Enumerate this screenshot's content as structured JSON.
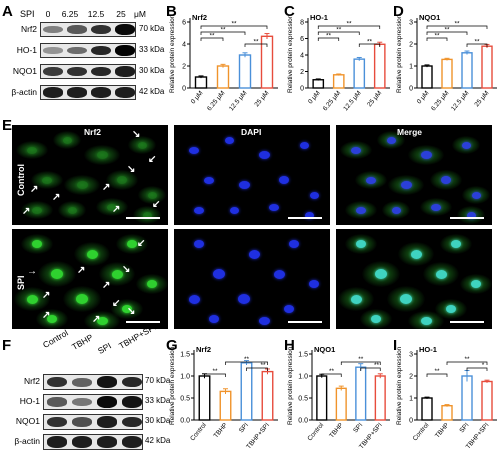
{
  "panels": {
    "A": "A",
    "B": "B",
    "C": "C",
    "D": "D",
    "E": "E",
    "F": "F",
    "G": "G",
    "H": "H",
    "I": "I"
  },
  "panel_a": {
    "spi_label": "SPI",
    "concentrations": [
      "0",
      "6.25",
      "12.5",
      "25",
      "μM"
    ],
    "rows": [
      {
        "label": "Nrf2",
        "kda": "70 kDa",
        "intensity": [
          0.35,
          0.55,
          0.75,
          0.95
        ]
      },
      {
        "label": "HO-1",
        "kda": "33 kDa",
        "intensity": [
          0.25,
          0.45,
          0.8,
          0.98
        ]
      },
      {
        "label": "NQO1",
        "kda": "30 kDa",
        "intensity": [
          0.7,
          0.75,
          0.8,
          0.85
        ]
      },
      {
        "label": "β-actin",
        "kda": "42 kDa",
        "intensity": [
          0.85,
          0.85,
          0.85,
          0.85
        ]
      }
    ]
  },
  "panel_f": {
    "conditions": [
      "Control",
      "TBHP",
      "SPI",
      "TBHP+SPI"
    ],
    "rows": [
      {
        "label": "Nrf2",
        "kda": "70 kDa",
        "intensity": [
          0.75,
          0.5,
          0.9,
          0.8
        ]
      },
      {
        "label": "HO-1",
        "kda": "33 kDa",
        "intensity": [
          0.55,
          0.4,
          0.95,
          0.9
        ]
      },
      {
        "label": "NQO1",
        "kda": "30 kDa",
        "intensity": [
          0.75,
          0.6,
          0.85,
          0.8
        ]
      },
      {
        "label": "β-actin",
        "kda": "42 kDa",
        "intensity": [
          0.85,
          0.85,
          0.85,
          0.85
        ]
      }
    ]
  },
  "panel_e": {
    "columns": [
      "Nrf2",
      "DAPI",
      "Merge"
    ],
    "rows": [
      "Control",
      "SPI"
    ]
  },
  "colors": {
    "c0": "#000000",
    "c1": "#f0932b",
    "c2": "#4a90d9",
    "c3": "#e74c3c",
    "green": "#2fd12f",
    "blue": "#1f2fe0",
    "cyan": "#3fd3c0"
  },
  "chart_data": [
    {
      "type": "bar",
      "panel": "B",
      "title": "Nrf2",
      "ylabel": "Relative protein expression",
      "categories": [
        "0 μM",
        "6.25 μM",
        "12.5 μM",
        "25 μM"
      ],
      "values": [
        1.0,
        2.0,
        3.0,
        4.7
      ],
      "errors": [
        0.1,
        0.15,
        0.2,
        0.25
      ],
      "ylim": [
        0,
        6
      ],
      "yticks": [
        0,
        2,
        4,
        6
      ],
      "significance": [
        "**",
        "**",
        "**",
        "**"
      ]
    },
    {
      "type": "bar",
      "panel": "C",
      "title": "HO-1",
      "ylabel": "Relative protein expression",
      "categories": [
        "0 μM",
        "6.25 μM",
        "12.5 μM",
        "25 μM"
      ],
      "values": [
        1.0,
        1.6,
        3.5,
        5.3
      ],
      "errors": [
        0.1,
        0.1,
        0.2,
        0.25
      ],
      "ylim": [
        0,
        8
      ],
      "yticks": [
        0,
        2,
        4,
        6,
        8
      ],
      "significance": [
        "**",
        "**",
        "**",
        "**"
      ]
    },
    {
      "type": "bar",
      "panel": "D",
      "title": "NQO1",
      "ylabel": "Relative protein expression",
      "categories": [
        "0 μM",
        "6.25 μM",
        "12.5 μM",
        "25 μM"
      ],
      "values": [
        1.0,
        1.3,
        1.6,
        1.9
      ],
      "errors": [
        0.05,
        0.05,
        0.08,
        0.08
      ],
      "ylim": [
        0,
        3
      ],
      "yticks": [
        0,
        1,
        2,
        3
      ],
      "significance": [
        "**",
        "**",
        "**",
        "**"
      ]
    },
    {
      "type": "bar",
      "panel": "G",
      "title": "Nrf2",
      "ylabel": "Relative protein expression",
      "categories": [
        "Control",
        "TBHP",
        "SPI",
        "TBHP+SPI"
      ],
      "values": [
        1.0,
        0.65,
        1.3,
        1.1
      ],
      "errors": [
        0.05,
        0.06,
        0.05,
        0.06
      ],
      "ylim": [
        0,
        1.5
      ],
      "yticks": [
        0.0,
        0.5,
        1.0,
        1.5
      ],
      "significance": [
        "**",
        "**",
        "**"
      ]
    },
    {
      "type": "bar",
      "panel": "H",
      "title": "NQO1",
      "ylabel": "Relative protein expression",
      "categories": [
        "Control",
        "TBHP",
        "SPI",
        "TBHP+SPI"
      ],
      "values": [
        1.0,
        0.72,
        1.2,
        1.0
      ],
      "errors": [
        0.04,
        0.05,
        0.08,
        0.05
      ],
      "ylim": [
        0,
        1.5
      ],
      "yticks": [
        0.0,
        0.5,
        1.0,
        1.5
      ],
      "significance": [
        "**",
        "**",
        "**"
      ]
    },
    {
      "type": "bar",
      "panel": "I",
      "title": "HO-1",
      "ylabel": "Relative protein expression",
      "categories": [
        "Control",
        "TBHP",
        "SPI",
        "TBHP+SPI"
      ],
      "values": [
        1.0,
        0.65,
        2.0,
        1.75
      ],
      "errors": [
        0.04,
        0.05,
        0.25,
        0.06
      ],
      "ylim": [
        0,
        3
      ],
      "yticks": [
        0,
        1,
        2,
        3
      ],
      "significance": [
        "**",
        "**",
        "*"
      ]
    }
  ]
}
